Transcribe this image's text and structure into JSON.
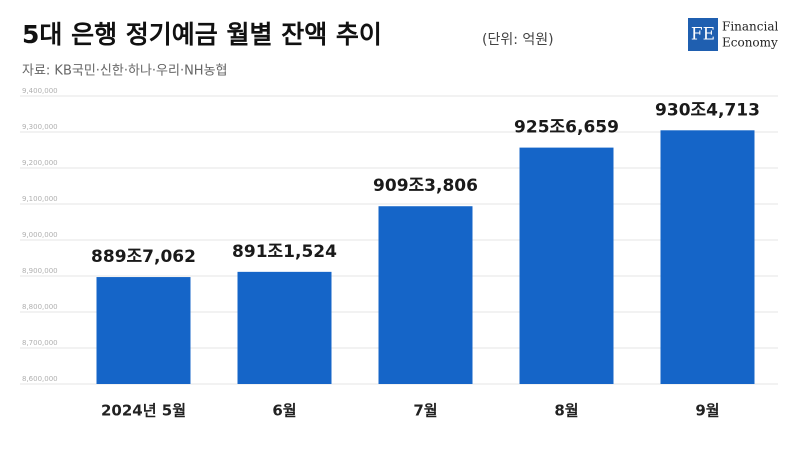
{
  "logo": {
    "mark": "FE",
    "line1": "Financial",
    "line2": "Economy"
  },
  "chart_data": {
    "type": "bar",
    "title": "5대 은행 정기예금 월별 잔액 추이",
    "subtitle": "(단위: 억원)",
    "source": "자료: KB국민·신한·하나·우리·NH농협",
    "categories": [
      "2024년 5월",
      "6월",
      "7월",
      "8월",
      "9월"
    ],
    "values": [
      8897062,
      8911524,
      9093806,
      9256659,
      9304713
    ],
    "value_labels": [
      "889조7,062",
      "891조1,524",
      "909조3,806",
      "925조6,659",
      "930조4,713"
    ],
    "color": "#1565c8",
    "ylim": [
      8600000,
      9400000
    ],
    "yticks": [
      {
        "value": 8600000,
        "label": "8,600,000"
      },
      {
        "value": 8700000,
        "label": "8,700,000"
      },
      {
        "value": 8800000,
        "label": "8,800,000"
      },
      {
        "value": 8900000,
        "label": "8,900,000"
      },
      {
        "value": 9000000,
        "label": "9,000,000"
      },
      {
        "value": 9100000,
        "label": "9,100,000"
      },
      {
        "value": 9200000,
        "label": "9,200,000"
      },
      {
        "value": 9300000,
        "label": "9,300,000"
      },
      {
        "value": 9400000,
        "label": "9,400,000"
      }
    ],
    "grid": true
  }
}
